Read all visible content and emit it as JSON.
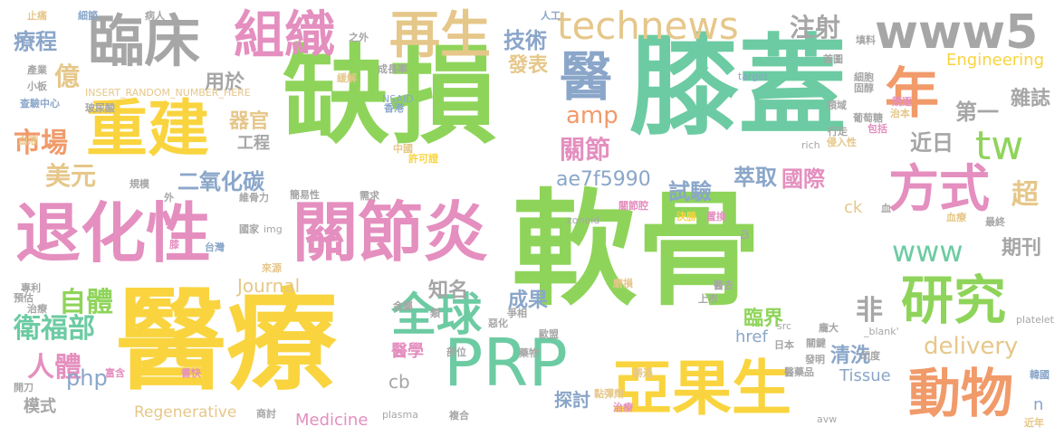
{
  "words": [
    {
      "text": "軟骨",
      "color": "#8fd45a"
    },
    {
      "text": "缺損",
      "color": "#8fd45a"
    },
    {
      "text": "醫療",
      "color": "#f9d43e"
    },
    {
      "text": "膝蓋",
      "color": "#6ccba2"
    },
    {
      "text": "關節炎",
      "color": "#e48fbf"
    },
    {
      "text": "退化性",
      "color": "#e48fbf"
    },
    {
      "text": "重建",
      "color": "#f9d43e"
    },
    {
      "text": "臨床",
      "color": "#a6a6a6"
    },
    {
      "text": "組織",
      "color": "#e48fbf"
    },
    {
      "text": "再生",
      "color": "#e6c78a"
    },
    {
      "text": "PRP",
      "color": "#6ccba2"
    },
    {
      "text": "亞果生",
      "color": "#f9d43e"
    },
    {
      "text": "www5",
      "color": "#a6a6a6"
    },
    {
      "text": "technews",
      "color": "#e6c78a"
    },
    {
      "text": "研究",
      "color": "#8fd45a"
    },
    {
      "text": "方式",
      "color": "#e48fbf"
    },
    {
      "text": "動物",
      "color": "#f19a6a"
    },
    {
      "text": "全球",
      "color": "#6ccba2"
    },
    {
      "text": "醫",
      "color": "#8aa6c9"
    },
    {
      "text": "年",
      "color": "#f19a6a"
    },
    {
      "text": "tw",
      "color": "#8fd45a"
    },
    {
      "text": "www",
      "color": "#6ccba2"
    },
    {
      "text": "delivery",
      "color": "#e6c78a"
    },
    {
      "text": "市場",
      "color": "#f19a6a"
    },
    {
      "text": "衛福部",
      "color": "#6ccba2"
    },
    {
      "text": "人體",
      "color": "#e48fbf"
    },
    {
      "text": "自體",
      "color": "#8fd45a"
    },
    {
      "text": "php",
      "color": "#8aa6c9"
    },
    {
      "text": "療程",
      "color": "#8aa6c9"
    },
    {
      "text": "技術",
      "color": "#8aa6c9"
    },
    {
      "text": "注射",
      "color": "#a6a6a6"
    },
    {
      "text": "Engineering",
      "color": "#f9d43e"
    },
    {
      "text": "億",
      "color": "#e6c78a"
    },
    {
      "text": "美元",
      "color": "#e6c78a"
    },
    {
      "text": "amp",
      "color": "#f19a6a"
    },
    {
      "text": "關節",
      "color": "#e48fbf"
    },
    {
      "text": "二氧化碳",
      "color": "#8aa6c9"
    },
    {
      "text": "用於",
      "color": "#a6a6a6"
    },
    {
      "text": "器官",
      "color": "#e6c78a"
    },
    {
      "text": "工程",
      "color": "#a6a6a6"
    },
    {
      "text": "發表",
      "color": "#e6c78a"
    },
    {
      "text": "雜誌",
      "color": "#a6a6a6"
    },
    {
      "text": "第一",
      "color": "#a6a6a6"
    },
    {
      "text": "近日",
      "color": "#a6a6a6"
    },
    {
      "text": "ae7f5990",
      "color": "#8aa6c9"
    },
    {
      "text": "萃取",
      "color": "#8aa6c9"
    },
    {
      "text": "國際",
      "color": "#e48fbf"
    },
    {
      "text": "試驗",
      "color": "#8aa6c9"
    },
    {
      "text": "超",
      "color": "#e6c78a"
    },
    {
      "text": "期刊",
      "color": "#a6a6a6"
    },
    {
      "text": "Journal",
      "color": "#e6c78a"
    },
    {
      "text": "知名",
      "color": "#a6a6a6"
    },
    {
      "text": "成果",
      "color": "#8aa6c9"
    },
    {
      "text": "臨界",
      "color": "#8fd45a"
    },
    {
      "text": "非",
      "color": "#a6a6a6"
    },
    {
      "text": "href",
      "color": "#8aa6c9"
    },
    {
      "text": "醫學",
      "color": "#e48fbf"
    },
    {
      "text": "清洗",
      "color": "#8aa6c9"
    },
    {
      "text": "Tissue",
      "color": "#8aa6c9"
    },
    {
      "text": "模式",
      "color": "#a6a6a6"
    },
    {
      "text": "cb",
      "color": "#a6a6a6"
    },
    {
      "text": "Regenerative",
      "color": "#e6c78a"
    },
    {
      "text": "Medicine",
      "color": "#e48fbf"
    },
    {
      "text": "探討",
      "color": "#8aa6c9"
    },
    {
      "text": "ck",
      "color": "#e6c78a"
    },
    {
      "text": "a",
      "color": "#a6a6a6"
    },
    {
      "text": "n",
      "color": "#8aa6c9"
    },
    {
      "text": "INSERT_RANDOM_NUMBER_HERE",
      "color": "#e6c78a"
    },
    {
      "text": "NSAID",
      "color": "#8aa6c9"
    },
    {
      "text": "成長率",
      "color": "#a6a6a6"
    },
    {
      "text": "緩解",
      "color": "#e6c78a"
    },
    {
      "text": "玻尿酸",
      "color": "#a6a6a6"
    },
    {
      "text": "香港",
      "color": "#8aa6c9"
    },
    {
      "text": "中國",
      "color": "#e6c78a"
    },
    {
      "text": "許可證",
      "color": "#f9d43e"
    },
    {
      "text": "zoneid",
      "color": "#a6a6a6"
    },
    {
      "text": "rich",
      "color": "#a6a6a6"
    },
    {
      "text": "target",
      "color": "#8aa6c9"
    },
    {
      "text": "競逐",
      "color": "#e48fbf"
    },
    {
      "text": "細胞",
      "color": "#a6a6a6"
    },
    {
      "text": "治本",
      "color": "#e6c78a"
    },
    {
      "text": "領域",
      "color": "#a6a6a6"
    },
    {
      "text": "葡萄糖",
      "color": "#a6a6a6"
    },
    {
      "text": "包括",
      "color": "#e48fbf"
    },
    {
      "text": "行走",
      "color": "#a6a6a6"
    },
    {
      "text": "侵入性",
      "color": "#e6c78a"
    },
    {
      "text": "固醇",
      "color": "#a6a6a6"
    },
    {
      "text": "首圖",
      "color": "#a6a6a6"
    },
    {
      "text": "填料",
      "color": "#a6a6a6"
    },
    {
      "text": "人工",
      "color": "#8aa6c9"
    },
    {
      "text": "止痛",
      "color": "#e6c78a"
    },
    {
      "text": "細節",
      "color": "#8aa6c9"
    },
    {
      "text": "病人",
      "color": "#a6a6a6"
    },
    {
      "text": "之外",
      "color": "#a6a6a6"
    },
    {
      "text": "產業",
      "color": "#a6a6a6"
    },
    {
      "text": "小板",
      "color": "#a6a6a6"
    },
    {
      "text": "查驗中心",
      "color": "#8aa6c9"
    },
    {
      "text": "規模",
      "color": "#a6a6a6"
    },
    {
      "text": "外",
      "color": "#a6a6a6"
    },
    {
      "text": "維骨力",
      "color": "#a6a6a6"
    },
    {
      "text": "簡易性",
      "color": "#a6a6a6"
    },
    {
      "text": "需求",
      "color": "#a6a6a6"
    },
    {
      "text": "國家",
      "color": "#a6a6a6"
    },
    {
      "text": "img",
      "color": "#a6a6a6"
    },
    {
      "text": "台灣",
      "color": "#8aa6c9"
    },
    {
      "text": "來源",
      "color": "#e6c78a"
    },
    {
      "text": "血液",
      "color": "#e6c78a"
    },
    {
      "text": "膝",
      "color": "#e48fbf"
    },
    {
      "text": "專利",
      "color": "#a6a6a6"
    },
    {
      "text": "預估",
      "color": "#a6a6a6"
    },
    {
      "text": "治療",
      "color": "#a6a6a6"
    },
    {
      "text": "金屬",
      "color": "#a6a6a6"
    },
    {
      "text": "類",
      "color": "#a6a6a6"
    },
    {
      "text": "惡化",
      "color": "#a6a6a6"
    },
    {
      "text": "藥物",
      "color": "#a6a6a6"
    },
    {
      "text": "歐盟",
      "color": "#a6a6a6"
    },
    {
      "text": "部位",
      "color": "#a6a6a6"
    },
    {
      "text": "爭相",
      "color": "#a6a6a6"
    },
    {
      "text": "富含",
      "color": "#e48fbf"
    },
    {
      "text": "開刀",
      "color": "#a6a6a6"
    },
    {
      "text": "書快",
      "color": "#e48fbf"
    },
    {
      "text": "商討",
      "color": "#a6a6a6"
    },
    {
      "text": "plasma",
      "color": "#a6a6a6"
    },
    {
      "text": "複合",
      "color": "#a6a6a6"
    },
    {
      "text": "治療",
      "color": "#e48fbf"
    },
    {
      "text": "勝過",
      "color": "#e6c78a"
    },
    {
      "text": "黏彈劑",
      "color": "#e6c78a"
    },
    {
      "text": "日本",
      "color": "#a6a6a6"
    },
    {
      "text": "發明",
      "color": "#a6a6a6"
    },
    {
      "text": "醫藥品",
      "color": "#a6a6a6"
    },
    {
      "text": "關鍵",
      "color": "#a6a6a6"
    },
    {
      "text": "印度",
      "color": "#a6a6a6"
    },
    {
      "text": "avw",
      "color": "#a6a6a6"
    },
    {
      "text": "近年",
      "color": "#e6c78a"
    },
    {
      "text": "韓國",
      "color": "#8aa6c9"
    },
    {
      "text": "platelet",
      "color": "#a6a6a6"
    },
    {
      "text": "_blank'",
      "color": "#a6a6a6"
    },
    {
      "text": "上市",
      "color": "#a6a6a6"
    },
    {
      "text": "醫去",
      "color": "#a6a6a6"
    },
    {
      "text": "磨損",
      "color": "#e6c78a"
    },
    {
      "text": "src",
      "color": "#a6a6a6"
    },
    {
      "text": "龐大",
      "color": "#a6a6a6"
    },
    {
      "text": "最終",
      "color": "#a6a6a6"
    },
    {
      "text": "血療",
      "color": "#e6c78a"
    },
    {
      "text": "置換",
      "color": "#e48fbf"
    },
    {
      "text": "決勝",
      "color": "#f9d43e"
    },
    {
      "text": "關節腔",
      "color": "#e48fbf"
    },
    {
      "text": "血",
      "color": "#a6a6a6"
    }
  ]
}
